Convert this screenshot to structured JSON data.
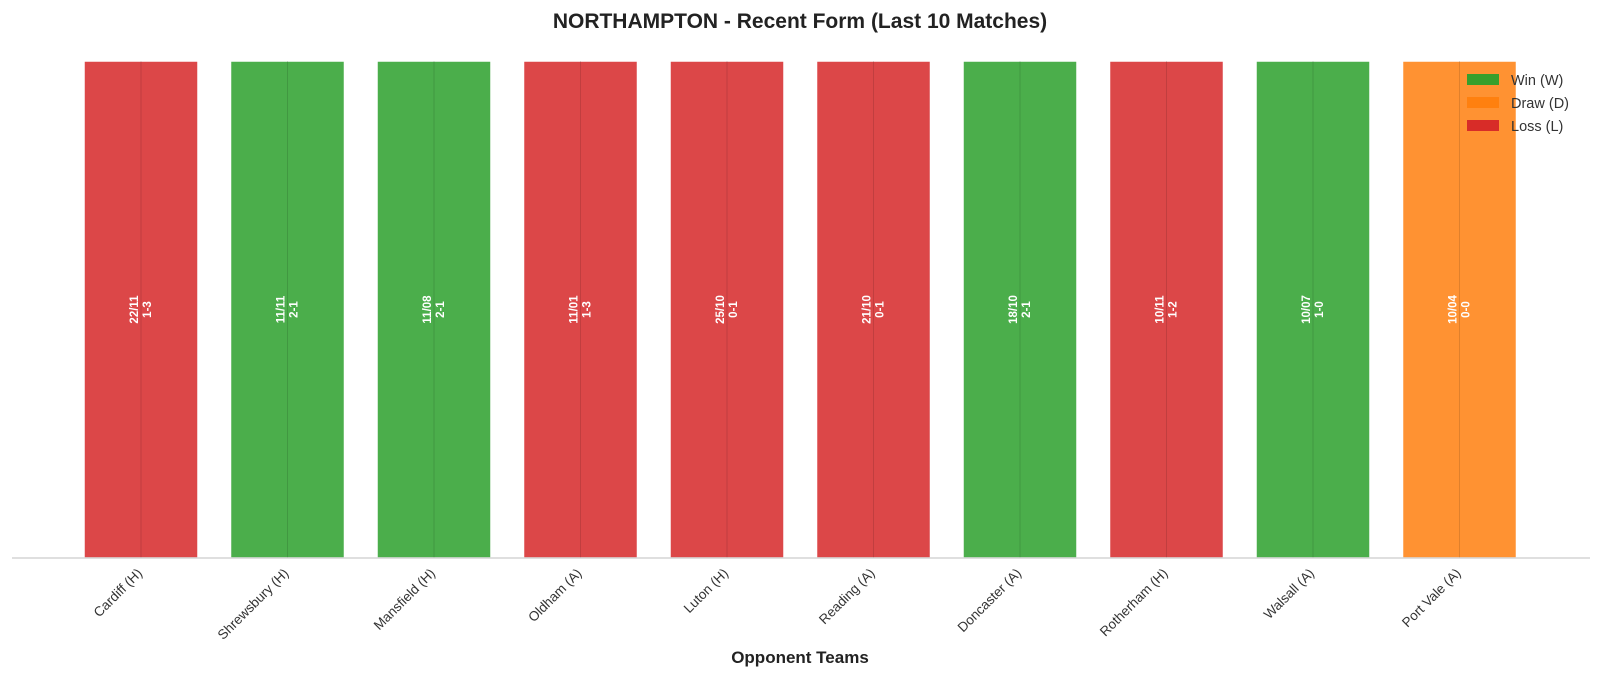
{
  "chart_data": {
    "type": "bar",
    "title": "NORTHAMPTON - Recent Form (Last 10 Matches)",
    "xlabel": "Opponent Teams",
    "ylabel": "",
    "ylim": [
      0,
      1
    ],
    "grid": false,
    "legend_position": "top-right",
    "categories": [
      "Cardiff (H)",
      "Shrewsbury (H)",
      "Mansfield (H)",
      "Oldham (A)",
      "Luton (H)",
      "Reading (A)",
      "Doncaster (A)",
      "Rotherham (H)",
      "Walsall (A)",
      "Port Vale (A)"
    ],
    "values": [
      1,
      1,
      1,
      1,
      1,
      1,
      1,
      1,
      1,
      1
    ],
    "results": [
      "L",
      "W",
      "W",
      "L",
      "L",
      "L",
      "W",
      "L",
      "W",
      "D"
    ],
    "dates": [
      "22/11",
      "11/11",
      "11/08",
      "11/01",
      "25/10",
      "21/10",
      "18/10",
      "10/11",
      "10/07",
      "10/04"
    ],
    "scores": [
      "1-3",
      "2-1",
      "2-1",
      "1-3",
      "0-1",
      "0-1",
      "2-1",
      "1-2",
      "1-0",
      "0-0"
    ],
    "legend": [
      {
        "key": "W",
        "label": "Win (W)",
        "color": "#2ca02c"
      },
      {
        "key": "D",
        "label": "Draw (D)",
        "color": "#ff7f0e"
      },
      {
        "key": "L",
        "label": "Loss (L)",
        "color": "#d62728"
      }
    ]
  }
}
